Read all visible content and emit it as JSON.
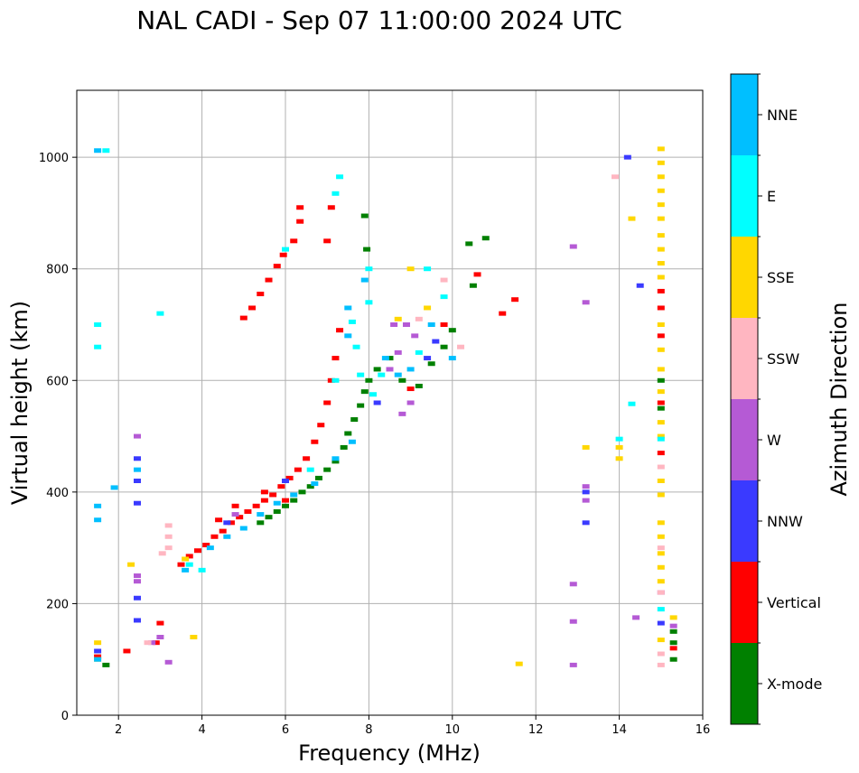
{
  "chart_data": {
    "type": "scatter",
    "title": "NAL CADI - Sep 07 11:00:00 2024 UTC",
    "xlabel": "Frequency (MHz)",
    "ylabel": "Virtual height (km)",
    "xlim": [
      1,
      16
    ],
    "ylim": [
      0,
      1120
    ],
    "xticks": [
      "2",
      "4",
      "6",
      "8",
      "10",
      "12",
      "14",
      "16"
    ],
    "yticks": [
      "0",
      "200",
      "400",
      "600",
      "800",
      "1000"
    ],
    "grid": true,
    "colorbar": {
      "label": "Azimuth Direction",
      "entries": [
        {
          "name": "X-mode",
          "color": "#008000"
        },
        {
          "name": "Vertical",
          "color": "#ff0000"
        },
        {
          "name": "NNW",
          "color": "#3a3aff"
        },
        {
          "name": "W",
          "color": "#b55ad5"
        },
        {
          "name": "SSW",
          "color": "#ffb6c1"
        },
        {
          "name": "SSE",
          "color": "#ffd700"
        },
        {
          "name": "E",
          "color": "#00ffff"
        },
        {
          "name": "NNE",
          "color": "#00bfff"
        }
      ]
    },
    "series": [
      {
        "name": "Vertical",
        "color": "#ff0000",
        "points": [
          [
            3.5,
            270
          ],
          [
            3.7,
            285
          ],
          [
            3.9,
            295
          ],
          [
            4.1,
            305
          ],
          [
            4.3,
            320
          ],
          [
            4.5,
            330
          ],
          [
            4.7,
            345
          ],
          [
            4.9,
            355
          ],
          [
            5.1,
            365
          ],
          [
            5.3,
            375
          ],
          [
            5.5,
            385
          ],
          [
            5.7,
            395
          ],
          [
            5.9,
            410
          ],
          [
            6.1,
            425
          ],
          [
            6.3,
            440
          ],
          [
            6.5,
            460
          ],
          [
            6.7,
            490
          ],
          [
            6.85,
            520
          ],
          [
            7.0,
            560
          ],
          [
            7.1,
            600
          ],
          [
            7.2,
            640
          ],
          [
            7.3,
            690
          ],
          [
            5.0,
            712
          ],
          [
            5.2,
            730
          ],
          [
            5.4,
            755
          ],
          [
            5.6,
            780
          ],
          [
            5.8,
            805
          ],
          [
            5.95,
            825
          ],
          [
            6.2,
            850
          ],
          [
            6.35,
            885
          ],
          [
            6.35,
            910
          ],
          [
            7.1,
            910
          ],
          [
            1.5,
            105
          ],
          [
            2.2,
            115
          ],
          [
            2.9,
            130
          ],
          [
            3.0,
            165
          ],
          [
            4.4,
            350
          ],
          [
            4.8,
            375
          ],
          [
            5.5,
            400
          ],
          [
            6.0,
            385
          ],
          [
            9.0,
            585
          ],
          [
            9.8,
            700
          ],
          [
            10.6,
            790
          ],
          [
            11.2,
            720
          ],
          [
            11.5,
            745
          ],
          [
            15.0,
            760
          ],
          [
            15.0,
            730
          ],
          [
            15.0,
            680
          ],
          [
            15.0,
            560
          ],
          [
            15.0,
            470
          ],
          [
            15.3,
            120
          ],
          [
            7.0,
            850
          ]
        ]
      },
      {
        "name": "X-mode",
        "color": "#008000",
        "points": [
          [
            5.4,
            345
          ],
          [
            5.6,
            355
          ],
          [
            5.8,
            365
          ],
          [
            6.0,
            375
          ],
          [
            6.2,
            385
          ],
          [
            6.4,
            400
          ],
          [
            6.6,
            410
          ],
          [
            6.8,
            425
          ],
          [
            7.0,
            440
          ],
          [
            7.2,
            455
          ],
          [
            7.4,
            480
          ],
          [
            7.5,
            505
          ],
          [
            7.65,
            530
          ],
          [
            7.8,
            555
          ],
          [
            7.9,
            580
          ],
          [
            8.0,
            600
          ],
          [
            8.2,
            620
          ],
          [
            8.5,
            640
          ],
          [
            8.8,
            600
          ],
          [
            9.2,
            590
          ],
          [
            9.5,
            630
          ],
          [
            9.8,
            660
          ],
          [
            10.0,
            690
          ],
          [
            10.5,
            770
          ],
          [
            10.8,
            855
          ],
          [
            10.4,
            845
          ],
          [
            7.95,
            835
          ],
          [
            7.9,
            895
          ],
          [
            15.0,
            600
          ],
          [
            15.0,
            550
          ],
          [
            15.3,
            150
          ],
          [
            15.3,
            100
          ],
          [
            15.3,
            130
          ],
          [
            1.7,
            90
          ]
        ]
      },
      {
        "name": "NNW",
        "color": "#3a3aff",
        "points": [
          [
            2.45,
            380
          ],
          [
            2.45,
            420
          ],
          [
            2.45,
            460
          ],
          [
            2.45,
            210
          ],
          [
            2.45,
            170
          ],
          [
            1.5,
            115
          ],
          [
            13.2,
            400
          ],
          [
            13.2,
            345
          ],
          [
            14.2,
            1000
          ],
          [
            14.5,
            770
          ],
          [
            15.0,
            165
          ],
          [
            9.4,
            640
          ],
          [
            9.6,
            670
          ],
          [
            8.2,
            560
          ],
          [
            6.0,
            420
          ],
          [
            4.6,
            345
          ]
        ]
      },
      {
        "name": "W",
        "color": "#b55ad5",
        "points": [
          [
            2.45,
            500
          ],
          [
            2.45,
            250
          ],
          [
            2.45,
            240
          ],
          [
            2.8,
            130
          ],
          [
            3.0,
            140
          ],
          [
            3.2,
            95
          ],
          [
            8.6,
            700
          ],
          [
            8.9,
            700
          ],
          [
            8.7,
            650
          ],
          [
            8.5,
            620
          ],
          [
            9.1,
            680
          ],
          [
            8.8,
            540
          ],
          [
            9.0,
            560
          ],
          [
            12.9,
            840
          ],
          [
            13.2,
            740
          ],
          [
            13.2,
            410
          ],
          [
            13.2,
            385
          ],
          [
            12.9,
            235
          ],
          [
            12.9,
            168
          ],
          [
            12.9,
            90
          ],
          [
            14.4,
            175
          ],
          [
            15.0,
            220
          ],
          [
            15.3,
            160
          ],
          [
            4.8,
            360
          ]
        ]
      },
      {
        "name": "SSW",
        "color": "#ffb6c1",
        "points": [
          [
            3.2,
            340
          ],
          [
            3.2,
            320
          ],
          [
            3.2,
            300
          ],
          [
            3.05,
            290
          ],
          [
            2.7,
            130
          ],
          [
            9.2,
            710
          ],
          [
            9.8,
            780
          ],
          [
            10.2,
            660
          ],
          [
            13.9,
            965
          ],
          [
            15.0,
            445
          ],
          [
            15.0,
            300
          ],
          [
            15.0,
            220
          ],
          [
            15.0,
            110
          ],
          [
            15.0,
            90
          ]
        ]
      },
      {
        "name": "SSE",
        "color": "#ffd700",
        "points": [
          [
            1.5,
            130
          ],
          [
            1.5,
            100
          ],
          [
            2.3,
            270
          ],
          [
            3.6,
            280
          ],
          [
            3.8,
            140
          ],
          [
            8.7,
            710
          ],
          [
            9.0,
            800
          ],
          [
            9.4,
            730
          ],
          [
            14.0,
            480
          ],
          [
            14.0,
            460
          ],
          [
            13.2,
            480
          ],
          [
            14.3,
            890
          ],
          [
            11.6,
            92
          ],
          [
            15.0,
            1015
          ],
          [
            15.0,
            990
          ],
          [
            15.0,
            965
          ],
          [
            15.0,
            940
          ],
          [
            15.0,
            915
          ],
          [
            15.0,
            890
          ],
          [
            15.0,
            860
          ],
          [
            15.0,
            835
          ],
          [
            15.0,
            810
          ],
          [
            15.0,
            785
          ],
          [
            15.0,
            700
          ],
          [
            15.0,
            655
          ],
          [
            15.0,
            620
          ],
          [
            15.0,
            580
          ],
          [
            15.0,
            525
          ],
          [
            15.0,
            500
          ],
          [
            15.0,
            420
          ],
          [
            15.0,
            395
          ],
          [
            15.0,
            345
          ],
          [
            15.0,
            320
          ],
          [
            15.0,
            290
          ],
          [
            15.0,
            265
          ],
          [
            15.0,
            240
          ],
          [
            15.0,
            135
          ],
          [
            15.3,
            175
          ]
        ]
      },
      {
        "name": "E",
        "color": "#00ffff",
        "points": [
          [
            1.5,
            700
          ],
          [
            1.5,
            660
          ],
          [
            3.0,
            720
          ],
          [
            3.7,
            270
          ],
          [
            4.0,
            260
          ],
          [
            6.0,
            835
          ],
          [
            7.2,
            935
          ],
          [
            7.3,
            965
          ],
          [
            7.6,
            705
          ],
          [
            7.7,
            660
          ],
          [
            7.8,
            610
          ],
          [
            8.0,
            740
          ],
          [
            8.0,
            800
          ],
          [
            8.1,
            575
          ],
          [
            8.3,
            610
          ],
          [
            9.2,
            650
          ],
          [
            9.4,
            800
          ],
          [
            9.8,
            750
          ],
          [
            7.2,
            600
          ],
          [
            6.6,
            440
          ],
          [
            14.0,
            495
          ],
          [
            14.3,
            558
          ],
          [
            15.0,
            495
          ],
          [
            15.0,
            190
          ],
          [
            1.7,
            1012
          ]
        ]
      },
      {
        "name": "NNE",
        "color": "#00bfff",
        "points": [
          [
            1.5,
            1012
          ],
          [
            1.5,
            375
          ],
          [
            1.5,
            350
          ],
          [
            1.5,
            100
          ],
          [
            1.9,
            408
          ],
          [
            2.45,
            440
          ],
          [
            3.6,
            260
          ],
          [
            4.2,
            300
          ],
          [
            4.6,
            320
          ],
          [
            5.0,
            335
          ],
          [
            5.4,
            360
          ],
          [
            5.8,
            380
          ],
          [
            6.2,
            395
          ],
          [
            6.7,
            415
          ],
          [
            7.2,
            460
          ],
          [
            7.6,
            490
          ],
          [
            7.5,
            680
          ],
          [
            7.5,
            730
          ],
          [
            7.9,
            780
          ],
          [
            8.4,
            640
          ],
          [
            8.7,
            610
          ],
          [
            9.0,
            620
          ],
          [
            9.5,
            700
          ],
          [
            10.0,
            640
          ]
        ]
      }
    ]
  }
}
